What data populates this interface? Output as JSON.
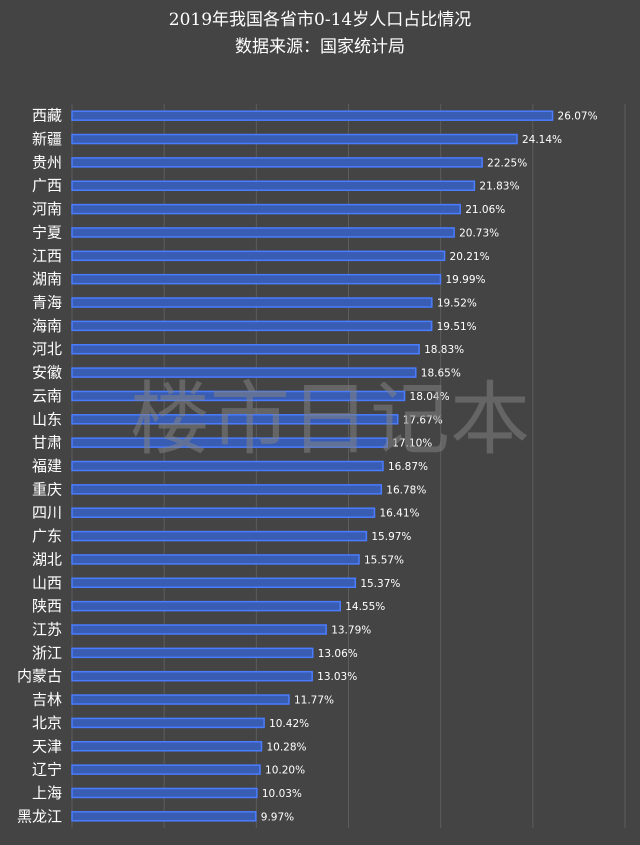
{
  "title": "2019年我国各省市0-14岁人口占比情况",
  "subtitle": "数据来源：国家统计局",
  "watermark": "楼市日记本",
  "colors": {
    "background": "#444444",
    "bar_fill": "#3a5db4",
    "bar_edge": "#4a7cff",
    "text": "#ffffff",
    "grid": "#5c5c5c"
  },
  "chart_data": {
    "type": "bar",
    "orientation": "horizontal",
    "title": "2019年我国各省市0-14岁人口占比情况",
    "subtitle": "数据来源：国家统计局",
    "categories": [
      "西藏",
      "新疆",
      "贵州",
      "广西",
      "河南",
      "宁夏",
      "江西",
      "湖南",
      "青海",
      "海南",
      "河北",
      "安徽",
      "云南",
      "山东",
      "甘肃",
      "福建",
      "重庆",
      "四川",
      "广东",
      "湖北",
      "山西",
      "陕西",
      "江苏",
      "浙江",
      "内蒙古",
      "吉林",
      "北京",
      "天津",
      "辽宁",
      "上海",
      "黑龙江"
    ],
    "values": [
      26.07,
      24.14,
      22.25,
      21.83,
      21.06,
      20.73,
      20.21,
      19.99,
      19.52,
      19.51,
      18.83,
      18.65,
      18.04,
      17.67,
      17.1,
      16.87,
      16.78,
      16.41,
      15.97,
      15.57,
      15.37,
      14.55,
      13.79,
      13.06,
      13.03,
      11.77,
      10.42,
      10.28,
      10.2,
      10.03,
      9.97
    ],
    "data_labels": [
      "26.07%",
      "24.14%",
      "22.25%",
      "21.83%",
      "21.06%",
      "20.73%",
      "20.21%",
      "19.99%",
      "19.52%",
      "19.51%",
      "18.83%",
      "18.65%",
      "18.04%",
      "17.67%",
      "17.10%",
      "16.87%",
      "16.78%",
      "16.41%",
      "15.97%",
      "15.57%",
      "15.37%",
      "14.55%",
      "13.79%",
      "13.06%",
      "13.03%",
      "11.77%",
      "10.42%",
      "10.28%",
      "10.20%",
      "10.03%",
      "9.97%"
    ],
    "xlim": [
      0,
      30
    ],
    "grid": true,
    "legend": "none"
  }
}
